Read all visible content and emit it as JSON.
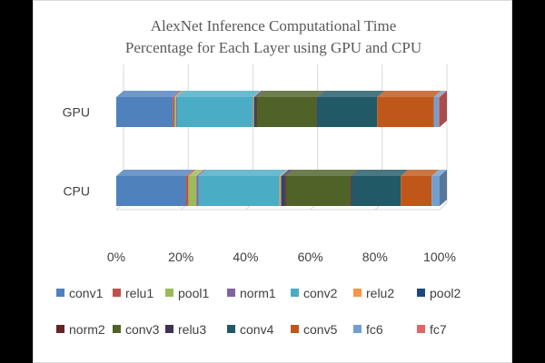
{
  "chart_data": {
    "type": "bar",
    "orientation": "horizontal",
    "stacked": true,
    "percent_stacked": true,
    "style": "3d",
    "title": [
      "AlexNet Inference Computational Time",
      "Percentage for Each Layer using GPU and CPU"
    ],
    "categories": [
      "GPU",
      "CPU"
    ],
    "x_ticks": [
      "0%",
      "20%",
      "40%",
      "60%",
      "80%",
      "100%"
    ],
    "xlim": [
      0,
      100
    ],
    "grid": true,
    "legend_position": "bottom",
    "series": [
      {
        "name": "conv1",
        "color": "#4f81bd",
        "values": [
          17.5,
          21.5
        ]
      },
      {
        "name": "relu1",
        "color": "#c0504d",
        "values": [
          0.5,
          0.8
        ]
      },
      {
        "name": "pool1",
        "color": "#9bbb59",
        "values": [
          0.5,
          2.5
        ]
      },
      {
        "name": "norm1",
        "color": "#8064a2",
        "values": [
          0.3,
          0.7
        ]
      },
      {
        "name": "conv2",
        "color": "#4bacc6",
        "values": [
          23.5,
          25.0
        ]
      },
      {
        "name": "relu2",
        "color": "#f79646",
        "values": [
          0.3,
          0.5
        ]
      },
      {
        "name": "pool2",
        "color": "#1f497d",
        "values": [
          0.5,
          1.0
        ]
      },
      {
        "name": "norm2",
        "color": "#632523",
        "values": [
          0.3,
          0.5
        ]
      },
      {
        "name": "conv3",
        "color": "#4f6228",
        "values": [
          18.5,
          20.0
        ]
      },
      {
        "name": "relu3",
        "color": "#3f3151",
        "values": [
          0.3,
          0.5
        ]
      },
      {
        "name": "conv4",
        "color": "#215967",
        "values": [
          18.5,
          15.0
        ]
      },
      {
        "name": "conv5",
        "color": "#c0571a",
        "values": [
          17.5,
          9.5
        ]
      },
      {
        "name": "fc6",
        "color": "#729fcf",
        "values": [
          1.5,
          2.5
        ]
      },
      {
        "name": "fc7",
        "color": "#e06666",
        "values": [
          0.3,
          0.0
        ]
      }
    ]
  }
}
